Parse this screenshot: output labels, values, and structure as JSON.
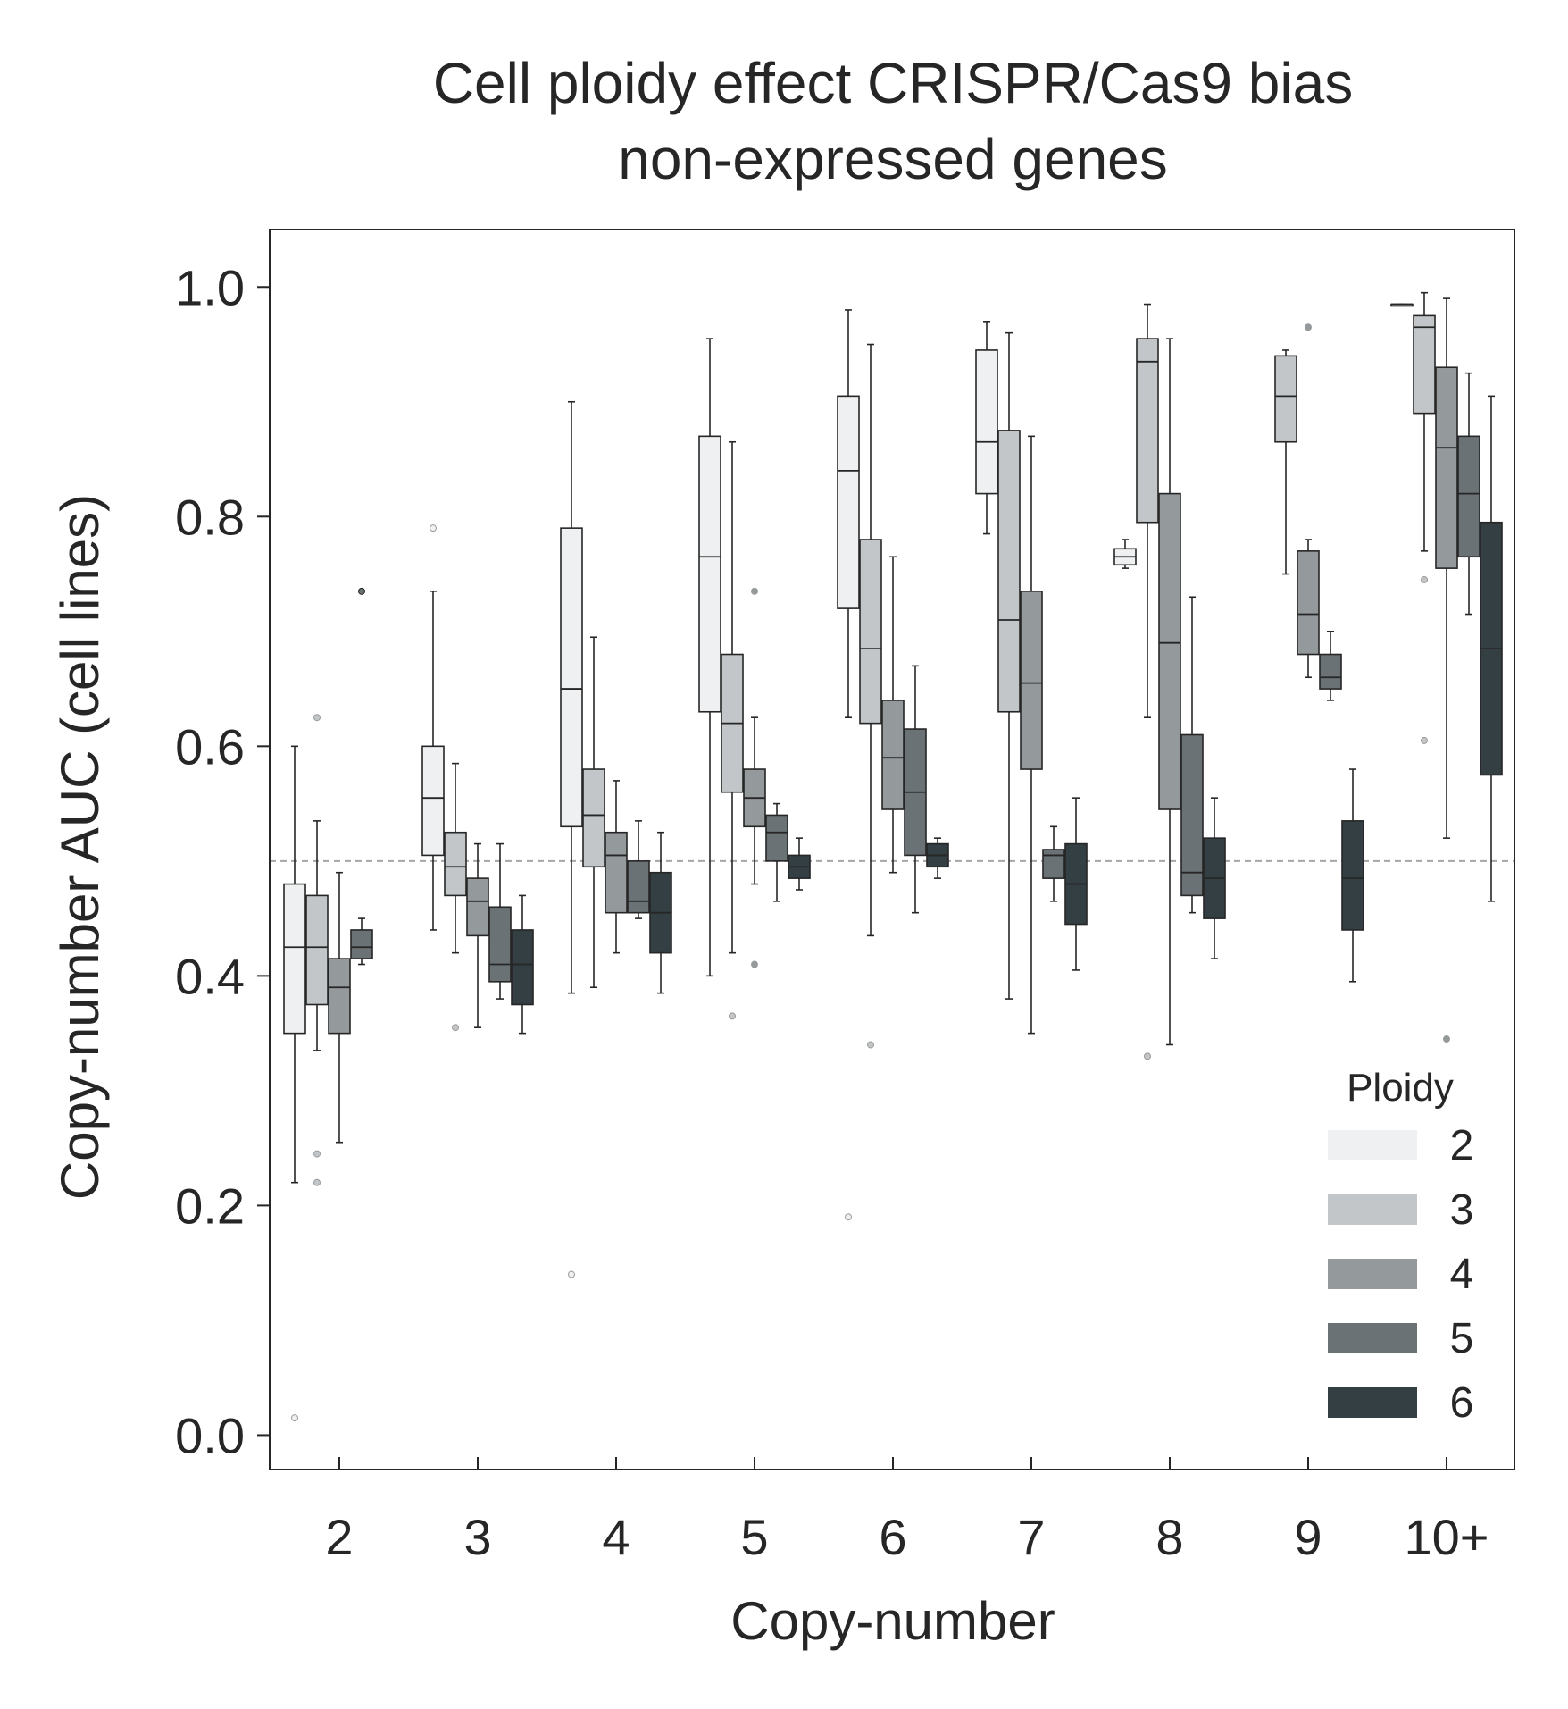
{
  "chart_data": {
    "type": "box",
    "title": [
      "Cell ploidy effect CRISPR/Cas9 bias",
      "non-expressed genes"
    ],
    "xlabel": "Copy-number",
    "ylabel": "Copy-number AUC (cell lines)",
    "categories": [
      "2",
      "3",
      "4",
      "5",
      "6",
      "7",
      "8",
      "9",
      "10+"
    ],
    "ylim": [
      -0.03,
      1.05
    ],
    "yticks": [
      "0.0",
      "0.2",
      "0.4",
      "0.6",
      "0.8",
      "1.0"
    ],
    "reference_line": 0.5,
    "grid": false,
    "legend": {
      "title": "Ploidy",
      "position": "bottom-right"
    },
    "series": [
      {
        "name": "2",
        "color": "#eef0f1",
        "boxes": [
          {
            "category": "2",
            "whislo": 0.22,
            "q1": 0.35,
            "med": 0.425,
            "q3": 0.48,
            "whishi": 0.6,
            "outliers": [
              0.015
            ]
          },
          {
            "category": "3",
            "whislo": 0.44,
            "q1": 0.505,
            "med": 0.555,
            "q3": 0.6,
            "whishi": 0.735,
            "outliers": [
              0.79
            ]
          },
          {
            "category": "4",
            "whislo": 0.385,
            "q1": 0.53,
            "med": 0.65,
            "q3": 0.79,
            "whishi": 0.9,
            "outliers": [
              0.14
            ]
          },
          {
            "category": "5",
            "whislo": 0.4,
            "q1": 0.63,
            "med": 0.765,
            "q3": 0.87,
            "whishi": 0.955,
            "outliers": []
          },
          {
            "category": "6",
            "whislo": 0.625,
            "q1": 0.72,
            "med": 0.84,
            "q3": 0.905,
            "whishi": 0.98,
            "outliers": [
              0.19
            ]
          },
          {
            "category": "7",
            "whislo": 0.785,
            "q1": 0.82,
            "med": 0.865,
            "q3": 0.945,
            "whishi": 0.97,
            "outliers": []
          },
          {
            "category": "8",
            "whislo": 0.755,
            "q1": 0.758,
            "med": 0.765,
            "q3": 0.772,
            "whishi": 0.78,
            "outliers": []
          },
          {
            "category": "10+",
            "whislo": 0.985,
            "q1": 0.985,
            "med": 0.985,
            "q3": 0.985,
            "whishi": 0.985,
            "outliers": []
          }
        ]
      },
      {
        "name": "3",
        "color": "#c3c6c8",
        "boxes": [
          {
            "category": "2",
            "whislo": 0.335,
            "q1": 0.375,
            "med": 0.425,
            "q3": 0.47,
            "whishi": 0.535,
            "outliers": [
              0.625,
              0.245,
              0.22
            ]
          },
          {
            "category": "3",
            "whislo": 0.42,
            "q1": 0.47,
            "med": 0.495,
            "q3": 0.525,
            "whishi": 0.585,
            "outliers": [
              0.355
            ]
          },
          {
            "category": "4",
            "whislo": 0.39,
            "q1": 0.495,
            "med": 0.54,
            "q3": 0.58,
            "whishi": 0.695,
            "outliers": []
          },
          {
            "category": "5",
            "whislo": 0.42,
            "q1": 0.56,
            "med": 0.62,
            "q3": 0.68,
            "whishi": 0.865,
            "outliers": [
              0.365
            ]
          },
          {
            "category": "6",
            "whislo": 0.435,
            "q1": 0.62,
            "med": 0.685,
            "q3": 0.78,
            "whishi": 0.95,
            "outliers": [
              0.34
            ]
          },
          {
            "category": "7",
            "whislo": 0.38,
            "q1": 0.63,
            "med": 0.71,
            "q3": 0.875,
            "whishi": 0.96,
            "outliers": []
          },
          {
            "category": "8",
            "whislo": 0.625,
            "q1": 0.795,
            "med": 0.935,
            "q3": 0.955,
            "whishi": 0.985,
            "outliers": [
              0.33
            ]
          },
          {
            "category": "9",
            "whislo": 0.75,
            "q1": 0.865,
            "med": 0.905,
            "q3": 0.94,
            "whishi": 0.945,
            "outliers": []
          },
          {
            "category": "10+",
            "whislo": 0.77,
            "q1": 0.89,
            "med": 0.965,
            "q3": 0.975,
            "whishi": 0.995,
            "outliers": [
              0.605,
              0.745
            ]
          }
        ]
      },
      {
        "name": "4",
        "color": "#94999c",
        "boxes": [
          {
            "category": "2",
            "whislo": 0.255,
            "q1": 0.35,
            "med": 0.39,
            "q3": 0.415,
            "whishi": 0.49,
            "outliers": []
          },
          {
            "category": "3",
            "whislo": 0.355,
            "q1": 0.435,
            "med": 0.465,
            "q3": 0.485,
            "whishi": 0.515,
            "outliers": []
          },
          {
            "category": "4",
            "whislo": 0.42,
            "q1": 0.455,
            "med": 0.505,
            "q3": 0.525,
            "whishi": 0.57,
            "outliers": []
          },
          {
            "category": "5",
            "whislo": 0.48,
            "q1": 0.53,
            "med": 0.555,
            "q3": 0.58,
            "whishi": 0.625,
            "outliers": [
              0.735,
              0.41
            ]
          },
          {
            "category": "6",
            "whislo": 0.49,
            "q1": 0.545,
            "med": 0.59,
            "q3": 0.64,
            "whishi": 0.765,
            "outliers": []
          },
          {
            "category": "7",
            "whislo": 0.35,
            "q1": 0.58,
            "med": 0.655,
            "q3": 0.735,
            "whishi": 0.87,
            "outliers": []
          },
          {
            "category": "8",
            "whislo": 0.34,
            "q1": 0.545,
            "med": 0.69,
            "q3": 0.82,
            "whishi": 0.955,
            "outliers": []
          },
          {
            "category": "9",
            "whislo": 0.66,
            "q1": 0.68,
            "med": 0.715,
            "q3": 0.77,
            "whishi": 0.78,
            "outliers": [
              0.965
            ]
          },
          {
            "category": "10+",
            "whislo": 0.52,
            "q1": 0.755,
            "med": 0.86,
            "q3": 0.93,
            "whishi": 0.99,
            "outliers": [
              0.345
            ]
          }
        ]
      },
      {
        "name": "5",
        "color": "#6a7275",
        "boxes": [
          {
            "category": "2",
            "whislo": 0.41,
            "q1": 0.415,
            "med": 0.425,
            "q3": 0.44,
            "whishi": 0.45,
            "outliers": [
              0.735
            ]
          },
          {
            "category": "3",
            "whislo": 0.38,
            "q1": 0.395,
            "med": 0.41,
            "q3": 0.46,
            "whishi": 0.515,
            "outliers": []
          },
          {
            "category": "4",
            "whislo": 0.45,
            "q1": 0.455,
            "med": 0.465,
            "q3": 0.5,
            "whishi": 0.535,
            "outliers": []
          },
          {
            "category": "5",
            "whislo": 0.465,
            "q1": 0.5,
            "med": 0.525,
            "q3": 0.54,
            "whishi": 0.55,
            "outliers": []
          },
          {
            "category": "6",
            "whislo": 0.455,
            "q1": 0.505,
            "med": 0.56,
            "q3": 0.615,
            "whishi": 0.67,
            "outliers": []
          },
          {
            "category": "7",
            "whislo": 0.465,
            "q1": 0.485,
            "med": 0.505,
            "q3": 0.51,
            "whishi": 0.53,
            "outliers": []
          },
          {
            "category": "8",
            "whislo": 0.455,
            "q1": 0.47,
            "med": 0.49,
            "q3": 0.61,
            "whishi": 0.73,
            "outliers": []
          },
          {
            "category": "9",
            "whislo": 0.64,
            "q1": 0.65,
            "med": 0.66,
            "q3": 0.68,
            "whishi": 0.7,
            "outliers": []
          },
          {
            "category": "10+",
            "whislo": 0.715,
            "q1": 0.765,
            "med": 0.82,
            "q3": 0.87,
            "whishi": 0.925,
            "outliers": []
          }
        ]
      },
      {
        "name": "6",
        "color": "#343f44",
        "boxes": [
          {
            "category": "3",
            "whislo": 0.35,
            "q1": 0.375,
            "med": 0.41,
            "q3": 0.44,
            "whishi": 0.47,
            "outliers": []
          },
          {
            "category": "4",
            "whislo": 0.385,
            "q1": 0.42,
            "med": 0.455,
            "q3": 0.49,
            "whishi": 0.525,
            "outliers": []
          },
          {
            "category": "5",
            "whislo": 0.475,
            "q1": 0.485,
            "med": 0.495,
            "q3": 0.505,
            "whishi": 0.52,
            "outliers": []
          },
          {
            "category": "6",
            "whislo": 0.485,
            "q1": 0.495,
            "med": 0.505,
            "q3": 0.515,
            "whishi": 0.52,
            "outliers": []
          },
          {
            "category": "7",
            "whislo": 0.405,
            "q1": 0.445,
            "med": 0.48,
            "q3": 0.515,
            "whishi": 0.555,
            "outliers": []
          },
          {
            "category": "8",
            "whislo": 0.415,
            "q1": 0.45,
            "med": 0.485,
            "q3": 0.52,
            "whishi": 0.555,
            "outliers": []
          },
          {
            "category": "9",
            "whislo": 0.395,
            "q1": 0.44,
            "med": 0.485,
            "q3": 0.535,
            "whishi": 0.58,
            "outliers": []
          },
          {
            "category": "10+",
            "whislo": 0.465,
            "q1": 0.575,
            "med": 0.685,
            "q3": 0.795,
            "whishi": 0.905,
            "outliers": []
          }
        ]
      }
    ]
  }
}
